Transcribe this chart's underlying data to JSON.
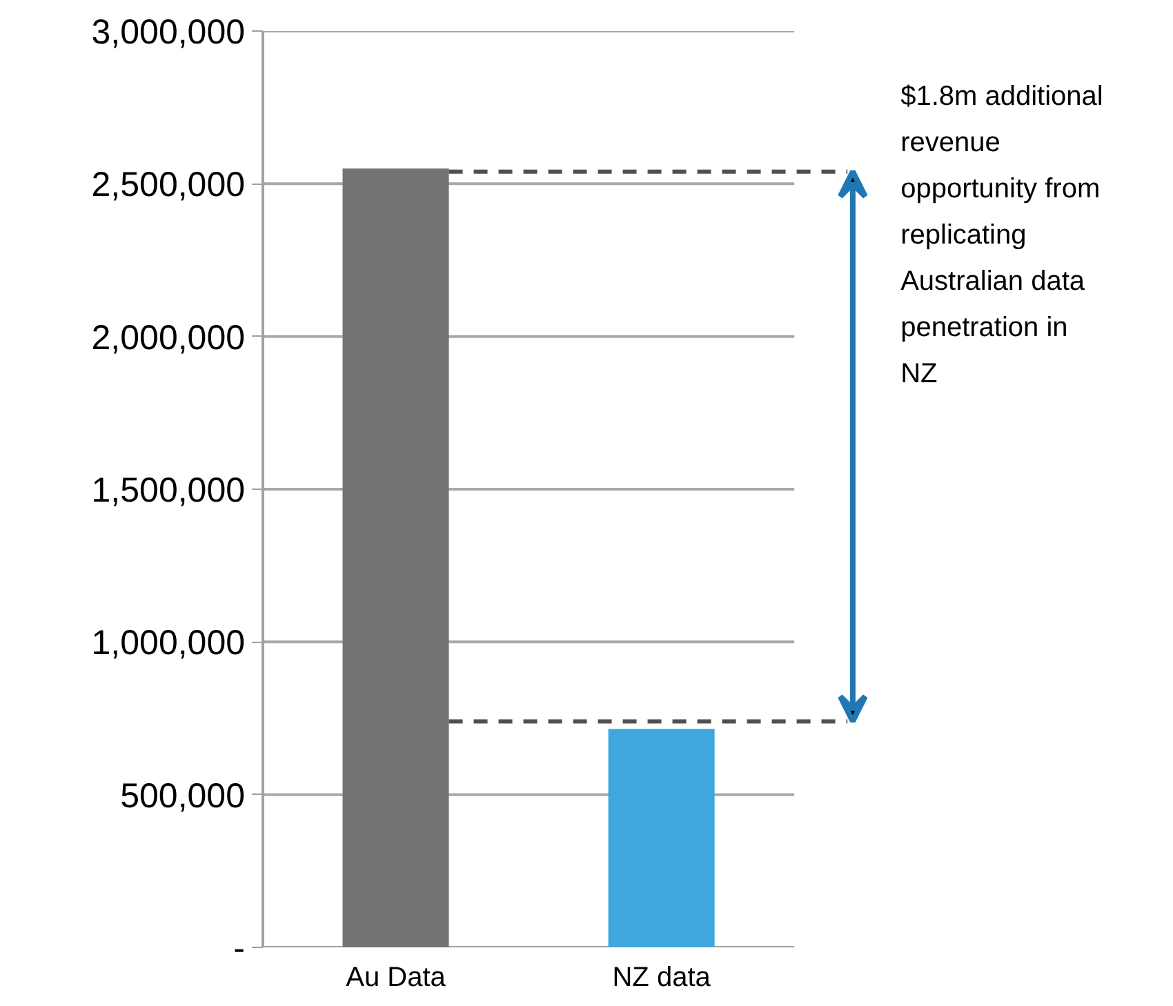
{
  "chart_data": {
    "type": "bar",
    "categories": [
      "Au Data",
      "NZ data"
    ],
    "values": [
      2550000,
      715000
    ],
    "colors": [
      "#737373",
      "#3fa7db"
    ],
    "ylim": [
      0,
      3000000
    ],
    "yticks": [
      {
        "value": 0,
        "label": "-"
      },
      {
        "value": 500000,
        "label": "500,000"
      },
      {
        "value": 1000000,
        "label": "1,000,000"
      },
      {
        "value": 1500000,
        "label": "1,500,000"
      },
      {
        "value": 2000000,
        "label": "2,000,000"
      },
      {
        "value": 2500000,
        "label": "2,500,000"
      },
      {
        "value": 3000000,
        "label": "3,000,000"
      }
    ],
    "grid": "y",
    "ref_lines": [
      {
        "axis": "y",
        "value": 2540000,
        "label": null,
        "color": "#505050",
        "line_style": "dashed"
      },
      {
        "axis": "y",
        "value": 740000,
        "label": null,
        "color": "#505050",
        "line_style": "dashed"
      }
    ],
    "annotations": [
      "$1.8m additional revenue opportunity from replicating Australian data penetration in NZ"
    ]
  }
}
